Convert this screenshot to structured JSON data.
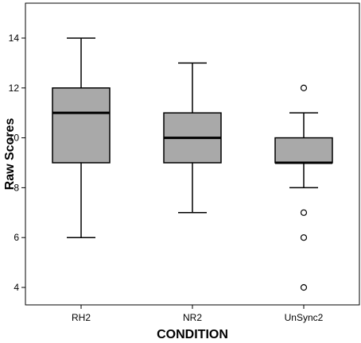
{
  "chart_data": {
    "type": "boxplot",
    "xlabel": "CONDITION",
    "ylabel": "Raw Scores",
    "ylim": [
      3.3,
      15.4
    ],
    "yticks": [
      4,
      6,
      8,
      10,
      12,
      14
    ],
    "grid": false,
    "categories": [
      "RH2",
      "NR2",
      "UnSync2"
    ],
    "boxes": [
      {
        "category": "RH2",
        "whisker_low": 6,
        "q1": 9,
        "median": 11,
        "q3": 12,
        "whisker_high": 14,
        "outliers": []
      },
      {
        "category": "NR2",
        "whisker_low": 7,
        "q1": 9,
        "median": 10,
        "q3": 11,
        "whisker_high": 13,
        "outliers": []
      },
      {
        "category": "UnSync2",
        "whisker_low": 8,
        "q1": 9,
        "median": 9,
        "q3": 10,
        "whisker_high": 11,
        "outliers": [
          12,
          7,
          6,
          4
        ]
      }
    ],
    "colors": {
      "box_fill": "#a9a9a9",
      "stroke": "#000000",
      "outlier_fill": "#ffffff"
    }
  }
}
